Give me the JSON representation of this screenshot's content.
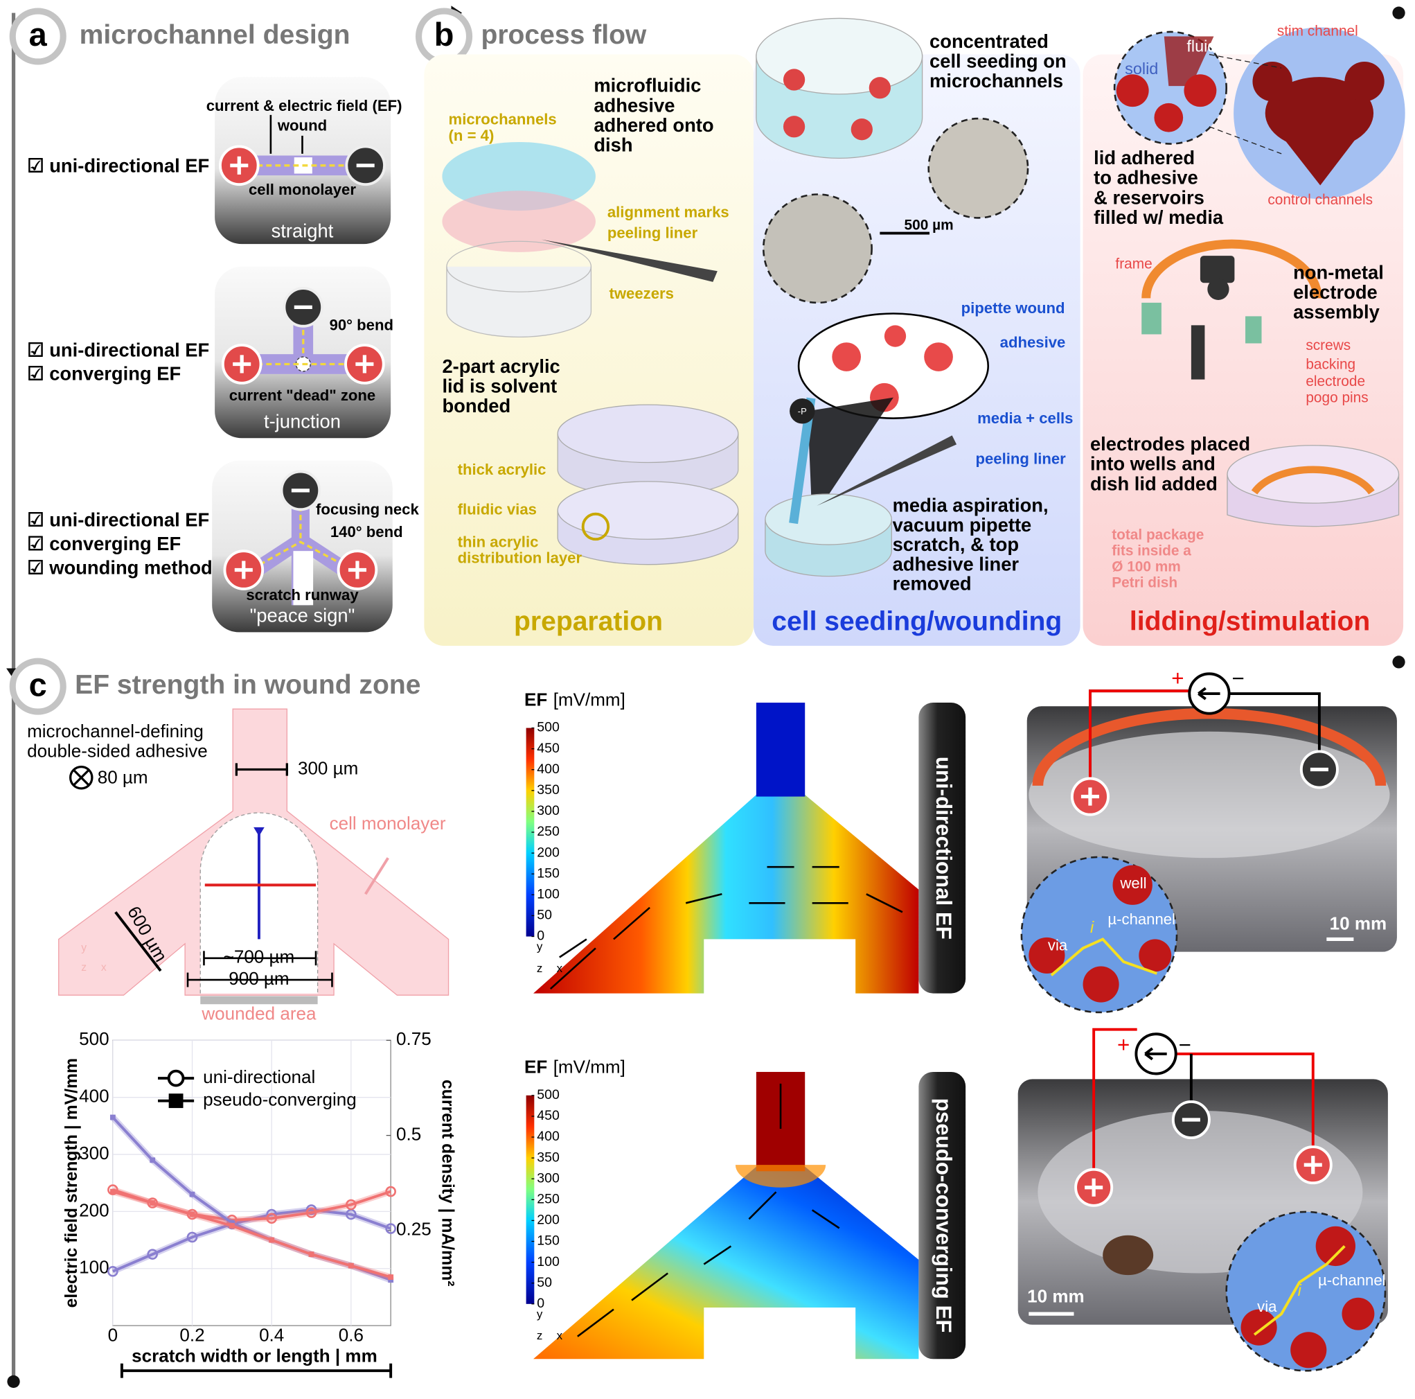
{
  "panel_a": {
    "letter": "a",
    "title": "microchannel design",
    "designs": [
      {
        "checks": [
          "☑ uni-directional EF"
        ],
        "labels": [
          "current & electric field (EF)",
          "wound",
          "cell monolayer"
        ],
        "name": "straight"
      },
      {
        "checks": [
          "☑ uni-directional EF",
          "☑ converging EF"
        ],
        "labels": [
          "90° bend",
          "current \"dead\" zone"
        ],
        "name": "t-junction"
      },
      {
        "checks": [
          "☑ uni-directional EF",
          "☑ converging EF",
          "☑ wounding method"
        ],
        "labels": [
          "focusing neck",
          "140° bend",
          "scratch runway"
        ],
        "name": "\"peace sign\""
      }
    ]
  },
  "panel_b": {
    "letter": "b",
    "title": "process flow",
    "stages": [
      {
        "name": "preparation",
        "steps": [
          [
            "microfluidic",
            "adhesive",
            "adhered onto",
            "dish"
          ],
          [
            "2-part acrylic",
            "lid is solvent",
            "bonded"
          ]
        ],
        "labels": [
          [
            "microchannels",
            "(n = 4)"
          ],
          "alignment marks",
          "peeling liner",
          "tweezers",
          "thick acrylic",
          "fluidic vias",
          [
            "thin acrylic",
            "distribution layer"
          ]
        ]
      },
      {
        "name": "cell seeding/wounding",
        "steps": [
          [
            "concentrated",
            "cell seeding on",
            "microchannels"
          ],
          [
            "media aspiration,",
            "vacuum pipette",
            "scratch, & top",
            "adhesive liner",
            "removed"
          ]
        ],
        "labels": [
          "500 µm",
          "pipette wound",
          "adhesive",
          "media + cells",
          "peeling liner",
          "-P"
        ]
      },
      {
        "name": "lidding/stimulation",
        "steps": [
          [
            "lid adhered",
            "to adhesive",
            "& reservoirs",
            "filled w/ media"
          ],
          [
            "non-metal",
            "electrode",
            "assembly"
          ],
          [
            "electrodes placed",
            "into wells and",
            "dish lid added"
          ]
        ],
        "labels": [
          "fluid",
          "solid",
          "stim channel",
          "control channels",
          "frame",
          "screws",
          "backing",
          "electrode",
          "pogo pins",
          [
            "total package",
            "fits inside a",
            "Ø 100 mm",
            "Petri dish"
          ]
        ]
      }
    ]
  },
  "panel_c": {
    "letter": "c",
    "title": "EF strength in wound zone",
    "schematic": {
      "adhesive": [
        "microchannel-defining",
        "double-sided adhesive"
      ],
      "thickness": "80 µm",
      "stem_width": "300 µm",
      "monolayer": "cell monolayer",
      "arm_width": "600 µm",
      "inner_width": "~700 µm",
      "outer_width": "900 µm",
      "wounded": "wounded area",
      "axes": [
        "y",
        "z",
        "x"
      ]
    },
    "simulations": [
      {
        "quantity": "EF",
        "unit": "[mV/mm]",
        "colorbar_ticks": [
          0,
          50,
          100,
          150,
          200,
          250,
          300,
          350,
          400,
          450,
          500
        ],
        "axes": [
          "y",
          "z",
          "x"
        ],
        "side_label": "uni-directional EF"
      },
      {
        "quantity": "EF",
        "unit": "[mV/mm]",
        "colorbar_ticks": [
          0,
          50,
          100,
          150,
          200,
          250,
          300,
          350,
          400,
          450,
          500
        ],
        "axes": [
          "y",
          "z",
          "x"
        ],
        "side_label": "pseudo-converging EF"
      }
    ],
    "photos": [
      {
        "polarity": [
          "+",
          "−"
        ],
        "labels": [
          "well",
          "µ-channel",
          "via",
          "i"
        ],
        "scale": "10 mm"
      },
      {
        "polarity": [
          "+",
          "−"
        ],
        "labels": [
          "µ-channel",
          "via",
          "i"
        ],
        "scale": "10 mm"
      }
    ]
  },
  "chart_data": {
    "type": "line",
    "xlabel": "scratch width or length | mm",
    "ylabel": "electric field strength | mV/mm",
    "y2label": "current density | mA/mm²",
    "x": [
      0,
      0.1,
      0.2,
      0.3,
      0.4,
      0.5,
      0.6,
      0.7
    ],
    "xlim": [
      0,
      0.7
    ],
    "ylim": [
      0,
      500
    ],
    "y2lim": [
      0,
      0.75
    ],
    "xticks": [
      0,
      0.2,
      0.4,
      0.6
    ],
    "yticks": [
      100,
      200,
      300,
      400,
      500
    ],
    "y2ticks": [
      0.25,
      0.5,
      0.75
    ],
    "grid": true,
    "legend": [
      {
        "name": "uni-directional",
        "marker": "circle"
      },
      {
        "name": "pseudo-converging",
        "marker": "square"
      }
    ],
    "series": [
      {
        "marker": "circle",
        "color": "#8a7fd0",
        "values": [
          95,
          125,
          155,
          178,
          195,
          203,
          195,
          170
        ]
      },
      {
        "marker": "circle",
        "color": "#f07272",
        "values": [
          238,
          215,
          195,
          185,
          188,
          198,
          212,
          235
        ]
      },
      {
        "marker": "square",
        "color": "#8a7fd0",
        "values": [
          365,
          290,
          230,
          180,
          150,
          125,
          105,
          80
        ]
      },
      {
        "marker": "square",
        "color": "#f07272",
        "values": [
          235,
          215,
          195,
          175,
          150,
          125,
          105,
          85
        ]
      }
    ]
  }
}
